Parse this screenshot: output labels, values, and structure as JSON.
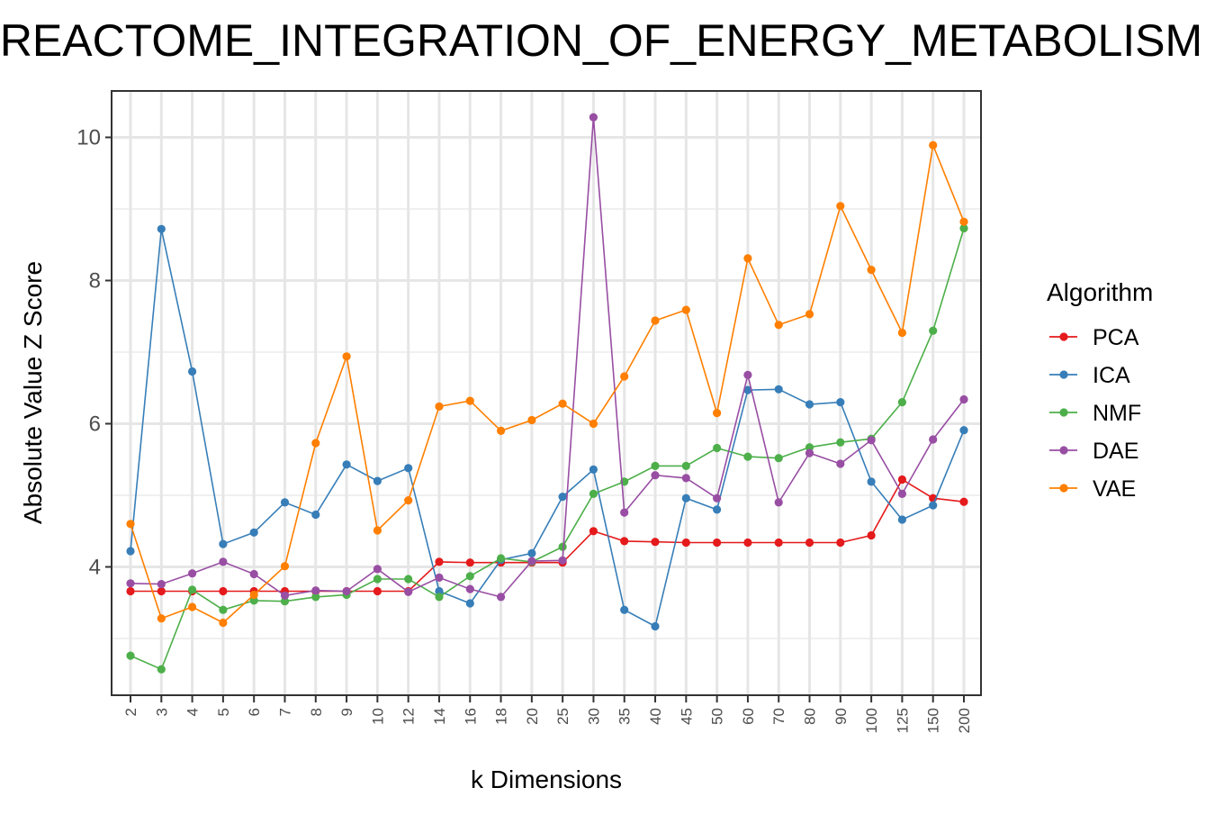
{
  "chart_data": {
    "type": "line",
    "title": "REACTOME_INTEGRATION_OF_ENERGY_METABOLISM",
    "xlabel": "k Dimensions",
    "ylabel": "Absolute Value Z Score",
    "categories": [
      "2",
      "3",
      "4",
      "5",
      "6",
      "7",
      "8",
      "9",
      "10",
      "12",
      "14",
      "16",
      "18",
      "20",
      "25",
      "30",
      "35",
      "40",
      "45",
      "50",
      "60",
      "70",
      "80",
      "90",
      "100",
      "125",
      "150",
      "200"
    ],
    "yticks": [
      4,
      6,
      8,
      10
    ],
    "ylim": [
      2.2,
      10.65
    ],
    "grid": true,
    "legend": {
      "title": "Algorithm",
      "placement": "right"
    },
    "series": [
      {
        "name": "PCA",
        "color": "#e41a1c",
        "values": [
          3.66,
          3.66,
          3.66,
          3.66,
          3.66,
          3.66,
          3.66,
          3.66,
          3.66,
          3.66,
          4.07,
          4.06,
          4.06,
          4.06,
          4.06,
          4.5,
          4.36,
          4.35,
          4.34,
          4.34,
          4.34,
          4.34,
          4.34,
          4.34,
          4.44,
          5.22,
          4.96,
          4.91
        ]
      },
      {
        "name": "ICA",
        "color": "#377eb8",
        "values": [
          4.22,
          8.72,
          6.73,
          4.32,
          4.48,
          4.9,
          4.73,
          5.43,
          5.2,
          5.38,
          3.66,
          3.49,
          4.1,
          4.19,
          4.98,
          5.36,
          3.4,
          3.17,
          4.96,
          4.8,
          6.47,
          6.48,
          6.27,
          6.3,
          5.19,
          4.66,
          4.86,
          5.91
        ]
      },
      {
        "name": "NMF",
        "color": "#4daf4a",
        "values": [
          2.76,
          2.57,
          3.68,
          3.4,
          3.53,
          3.52,
          3.58,
          3.61,
          3.83,
          3.83,
          3.58,
          3.87,
          4.12,
          4.07,
          4.28,
          5.02,
          5.19,
          5.41,
          5.41,
          5.66,
          5.54,
          5.52,
          5.67,
          5.74,
          5.79,
          6.3,
          7.3,
          8.73
        ]
      },
      {
        "name": "DAE",
        "color": "#984ea3",
        "values": [
          3.77,
          3.76,
          3.91,
          4.07,
          3.9,
          3.6,
          3.67,
          3.66,
          3.97,
          3.65,
          3.85,
          3.69,
          3.58,
          4.08,
          4.09,
          10.28,
          4.76,
          5.28,
          5.24,
          4.96,
          6.68,
          4.9,
          5.59,
          5.44,
          5.77,
          5.02,
          5.78,
          6.34
        ]
      },
      {
        "name": "VAE",
        "color": "#ff7f00",
        "values": [
          4.6,
          3.28,
          3.44,
          3.22,
          3.61,
          4.01,
          5.73,
          6.94,
          4.51,
          4.93,
          6.24,
          6.32,
          5.9,
          6.05,
          6.28,
          6.0,
          6.66,
          7.44,
          7.59,
          6.15,
          8.31,
          7.38,
          7.53,
          9.04,
          8.15,
          7.27,
          9.89,
          8.82
        ]
      }
    ]
  }
}
